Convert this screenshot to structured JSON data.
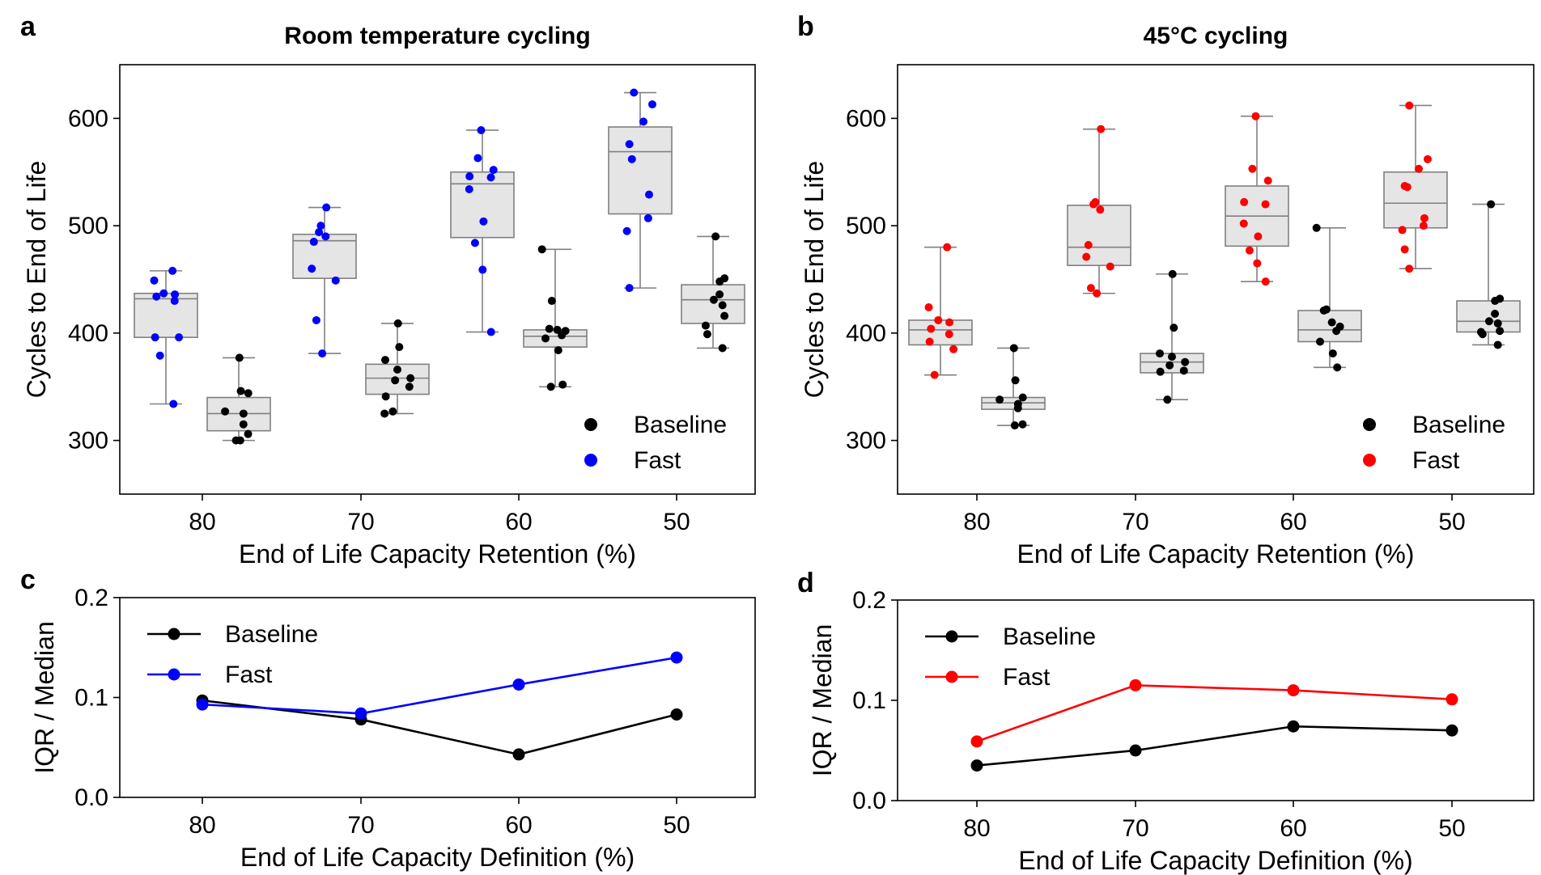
{
  "figure": {
    "panels": [
      {
        "letter": "a"
      },
      {
        "letter": "b"
      },
      {
        "letter": "c"
      },
      {
        "letter": "d"
      }
    ]
  },
  "chart_data": [
    {
      "type": "box",
      "letter": "a",
      "title": "Room temperature cycling",
      "xlabel": "End of Life Capacity Retention (%)",
      "ylabel": "Cycles to End of Life",
      "categories": [
        "80",
        "70",
        "60",
        "50"
      ],
      "yticks": [
        300,
        400,
        500,
        600
      ],
      "ylim": [
        250,
        650
      ],
      "colors": {
        "Baseline": "#000000",
        "Fast": "#0000ff"
      },
      "legend": {
        "position": "bottom-right",
        "entries": [
          "Baseline",
          "Fast"
        ]
      },
      "series": [
        {
          "name": "Fast",
          "boxes": [
            {
              "category": "80",
              "q1": 396,
              "median": 432,
              "q3": 437,
              "whisker_low": 334,
              "whisker_high": 458
            },
            {
              "category": "70",
              "q1": 451,
              "median": 486,
              "q3": 492,
              "whisker_low": 381,
              "whisker_high": 517
            },
            {
              "category": "60",
              "q1": 489,
              "median": 539,
              "q3": 550,
              "whisker_low": 401,
              "whisker_high": 589
            },
            {
              "category": "50",
              "q1": 511,
              "median": 569,
              "q3": 592,
              "whisker_low": 442,
              "whisker_high": 624
            }
          ],
          "points": [
            [
              458,
              449,
              437,
              436,
              434,
              430,
              396,
              396,
              379,
              334
            ],
            [
              517,
              500,
              494,
              490,
              485,
              460,
              449,
              412,
              381
            ],
            [
              589,
              563,
              552,
              546,
              545,
              534,
              504,
              484,
              459,
              401
            ],
            [
              624,
              613,
              597,
              576,
              562,
              529,
              507,
              495,
              442
            ]
          ]
        },
        {
          "name": "Baseline",
          "boxes": [
            {
              "category": "80",
              "q1": 309,
              "median": 325,
              "q3": 340,
              "whisker_low": 300,
              "whisker_high": 377
            },
            {
              "category": "70",
              "q1": 343,
              "median": 358,
              "q3": 371,
              "whisker_low": 325,
              "whisker_high": 409
            },
            {
              "category": "60",
              "q1": 387,
              "median": 397,
              "q3": 403,
              "whisker_low": 350,
              "whisker_high": 478
            },
            {
              "category": "50",
              "q1": 409,
              "median": 431,
              "q3": 445,
              "whisker_low": 386,
              "whisker_high": 490
            }
          ],
          "points": [
            [
              377,
              346,
              344,
              327,
              325,
              315,
              306,
              300,
              300
            ],
            [
              409,
              387,
              375,
              366,
              358,
              356,
              350,
              341,
              327,
              325
            ],
            [
              478,
              430,
              404,
              403,
              402,
              398,
              395,
              384,
              352,
              350
            ],
            [
              490,
              451,
              448,
              436,
              431,
              426,
              416,
              407,
              399,
              386
            ]
          ]
        }
      ]
    },
    {
      "type": "box",
      "letter": "b",
      "title": "45°C cycling",
      "xlabel": "End of Life Capacity Retention (%)",
      "ylabel": "Cycles to End of Life",
      "categories": [
        "80",
        "70",
        "60",
        "50"
      ],
      "yticks": [
        300,
        400,
        500,
        600
      ],
      "ylim": [
        250,
        650
      ],
      "colors": {
        "Baseline": "#000000",
        "Fast": "#ff0000"
      },
      "legend": {
        "position": "bottom-right",
        "entries": [
          "Baseline",
          "Fast"
        ]
      },
      "series": [
        {
          "name": "Fast",
          "boxes": [
            {
              "category": "80",
              "q1": 389,
              "median": 403,
              "q3": 412,
              "whisker_low": 361,
              "whisker_high": 480
            },
            {
              "category": "70",
              "q1": 463,
              "median": 480,
              "q3": 519,
              "whisker_low": 437,
              "whisker_high": 590
            },
            {
              "category": "60",
              "q1": 481,
              "median": 509,
              "q3": 537,
              "whisker_low": 448,
              "whisker_high": 602
            },
            {
              "category": "50",
              "q1": 498,
              "median": 521,
              "q3": 550,
              "whisker_low": 460,
              "whisker_high": 612
            }
          ],
          "points": [
            [
              480,
              424,
              412,
              410,
              404,
              399,
              392,
              385,
              361
            ],
            [
              590,
              522,
              520,
              515,
              482,
              471,
              462,
              442,
              437
            ],
            [
              602,
              553,
              542,
              522,
              520,
              502,
              490,
              477,
              465,
              448
            ],
            [
              612,
              562,
              553,
              537,
              536,
              507,
              500,
              496,
              478,
              460
            ]
          ]
        },
        {
          "name": "Baseline",
          "boxes": [
            {
              "category": "80",
              "q1": 329,
              "median": 335,
              "q3": 340,
              "whisker_low": 314,
              "whisker_high": 386
            },
            {
              "category": "70",
              "q1": 363,
              "median": 373,
              "q3": 381,
              "whisker_low": 338,
              "whisker_high": 455
            },
            {
              "category": "60",
              "q1": 392,
              "median": 403,
              "q3": 421,
              "whisker_low": 368,
              "whisker_high": 498
            },
            {
              "category": "50",
              "q1": 401,
              "median": 411,
              "q3": 430,
              "whisker_low": 389,
              "whisker_high": 520
            }
          ],
          "points": [
            [
              386,
              356,
              340,
              338,
              334,
              330,
              315,
              314
            ],
            [
              455,
              405,
              381,
              378,
              373,
              370,
              365,
              364,
              338
            ],
            [
              498,
              422,
              421,
              410,
              406,
              402,
              392,
              381,
              368
            ],
            [
              520,
              432,
              430,
              418,
              411,
              409,
              402,
              401,
              399,
              389
            ]
          ]
        }
      ]
    },
    {
      "type": "line",
      "letter": "c",
      "title": "",
      "xlabel": "End of Life Capacity Definition (%)",
      "ylabel": "IQR / Median",
      "categories": [
        "80",
        "70",
        "60",
        "50"
      ],
      "yticks": [
        "0.0",
        "0.1",
        "0.2"
      ],
      "ylim": [
        0.0,
        0.2
      ],
      "legend": {
        "position": "top-left",
        "entries": [
          "Baseline",
          "Fast"
        ]
      },
      "series": [
        {
          "name": "Baseline",
          "color": "#000000",
          "values": [
            0.097,
            0.078,
            0.043,
            0.083
          ]
        },
        {
          "name": "Fast",
          "color": "#0000ff",
          "values": [
            0.093,
            0.084,
            0.113,
            0.14
          ]
        }
      ]
    },
    {
      "type": "line",
      "letter": "d",
      "title": "",
      "xlabel": "End of Life Capacity Definition (%)",
      "ylabel": "IQR / Median",
      "categories": [
        "80",
        "70",
        "60",
        "50"
      ],
      "yticks": [
        "0.0",
        "0.1",
        "0.2"
      ],
      "ylim": [
        0.0,
        0.2
      ],
      "legend": {
        "position": "top-left",
        "entries": [
          "Baseline",
          "Fast"
        ]
      },
      "series": [
        {
          "name": "Baseline",
          "color": "#000000",
          "values": [
            0.035,
            0.05,
            0.074,
            0.07
          ]
        },
        {
          "name": "Fast",
          "color": "#ff0000",
          "values": [
            0.059,
            0.115,
            0.11,
            0.101
          ]
        }
      ]
    }
  ]
}
